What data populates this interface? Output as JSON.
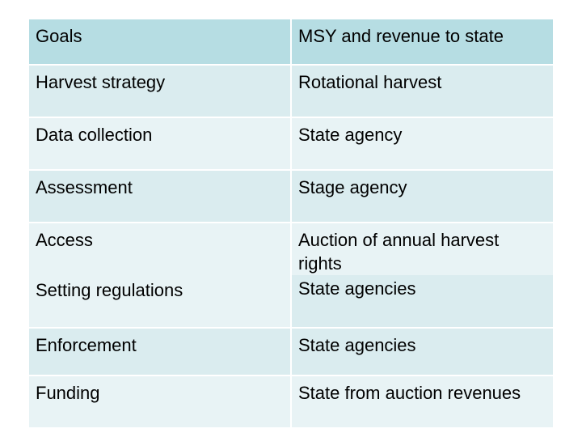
{
  "table": {
    "rows": [
      {
        "left": "Goals",
        "right": "MSY and revenue to state"
      },
      {
        "left": "Harvest strategy",
        "right": "Rotational harvest"
      },
      {
        "left": "Data collection",
        "right": "State agency"
      },
      {
        "left": "Assessment",
        "right": "Stage agency"
      },
      {
        "left": "Access",
        "right": "Auction of annual harvest rights"
      },
      {
        "left": "Setting regulations",
        "right": "State agencies"
      },
      {
        "left": "Enforcement",
        "right": "State agencies"
      },
      {
        "left": "Funding",
        "right": "State from auction revenues"
      }
    ]
  },
  "colors": {
    "header_fill": "#b6dde3",
    "row_fill_a": "#daecef",
    "row_fill_b": "#e8f3f5"
  }
}
